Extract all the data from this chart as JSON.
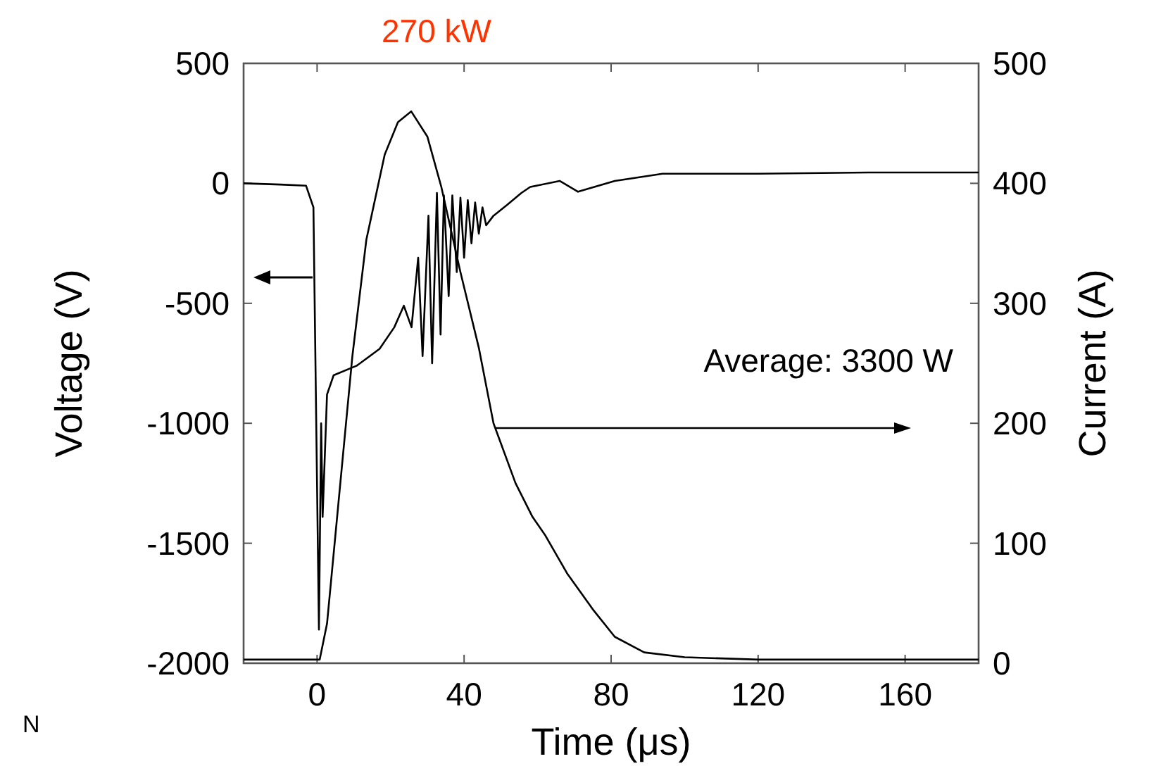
{
  "chart_data": {
    "type": "line",
    "xlabel": "Time (μs)",
    "ylabel": "Voltage (V)",
    "y2label": "Current (A)",
    "xlim": [
      -20,
      180
    ],
    "xticks": [
      0,
      40,
      80,
      120,
      160
    ],
    "ylim": [
      -2000,
      500
    ],
    "yticks": [
      -2000,
      -1500,
      -1000,
      -500,
      0,
      500
    ],
    "y2lim": [
      0,
      500
    ],
    "y2ticks": [
      0,
      100,
      200,
      300,
      400,
      500
    ],
    "grid": false,
    "line_style": "solid",
    "annotations": [
      "270 kW",
      "Average: 3300 W",
      "N"
    ],
    "series": [
      {
        "color": "#000000",
        "x": [
          -20,
          -10,
          -3,
          -1,
          0.5,
          1.1,
          1.5,
          2.7,
          4.5,
          10.8,
          17,
          21,
          23.6,
          25.7,
          27.5,
          28.7,
          30.3,
          31.3,
          32.6,
          33.6,
          34.5,
          35.8,
          36.8,
          38,
          39,
          40,
          41,
          42,
          43,
          44,
          45,
          46,
          48,
          51.7,
          55.6,
          58,
          66,
          71,
          81,
          94,
          120,
          150,
          180
        ],
        "values": [
          0,
          -5,
          -10,
          -100,
          -1860,
          -1000,
          -1390,
          -880,
          -800,
          -760,
          -690,
          -600,
          -510,
          -600,
          -310,
          -720,
          -135,
          -750,
          -40,
          -630,
          -50,
          -470,
          -50,
          -370,
          -60,
          -310,
          -70,
          -250,
          -80,
          -210,
          -100,
          -175,
          -135,
          -90,
          -40,
          -15,
          10,
          -35,
          10,
          40,
          40,
          45,
          45
        ]
      },
      {
        "color": "#000000",
        "axis": "y2",
        "x": [
          -20,
          0,
          0.7,
          2.7,
          5.7,
          9.6,
          13.4,
          18.4,
          22,
          25.6,
          30,
          33.8,
          39,
          44,
          48,
          54,
          58.6,
          62,
          68,
          75,
          81,
          89,
          100,
          120,
          150,
          180
        ],
        "values": [
          3,
          3,
          3,
          33,
          130,
          256,
          353,
          424,
          451,
          460,
          439,
          397,
          326,
          263,
          200,
          150,
          122,
          107,
          75,
          45,
          22,
          9,
          5,
          3,
          3,
          3
        ]
      }
    ]
  }
}
